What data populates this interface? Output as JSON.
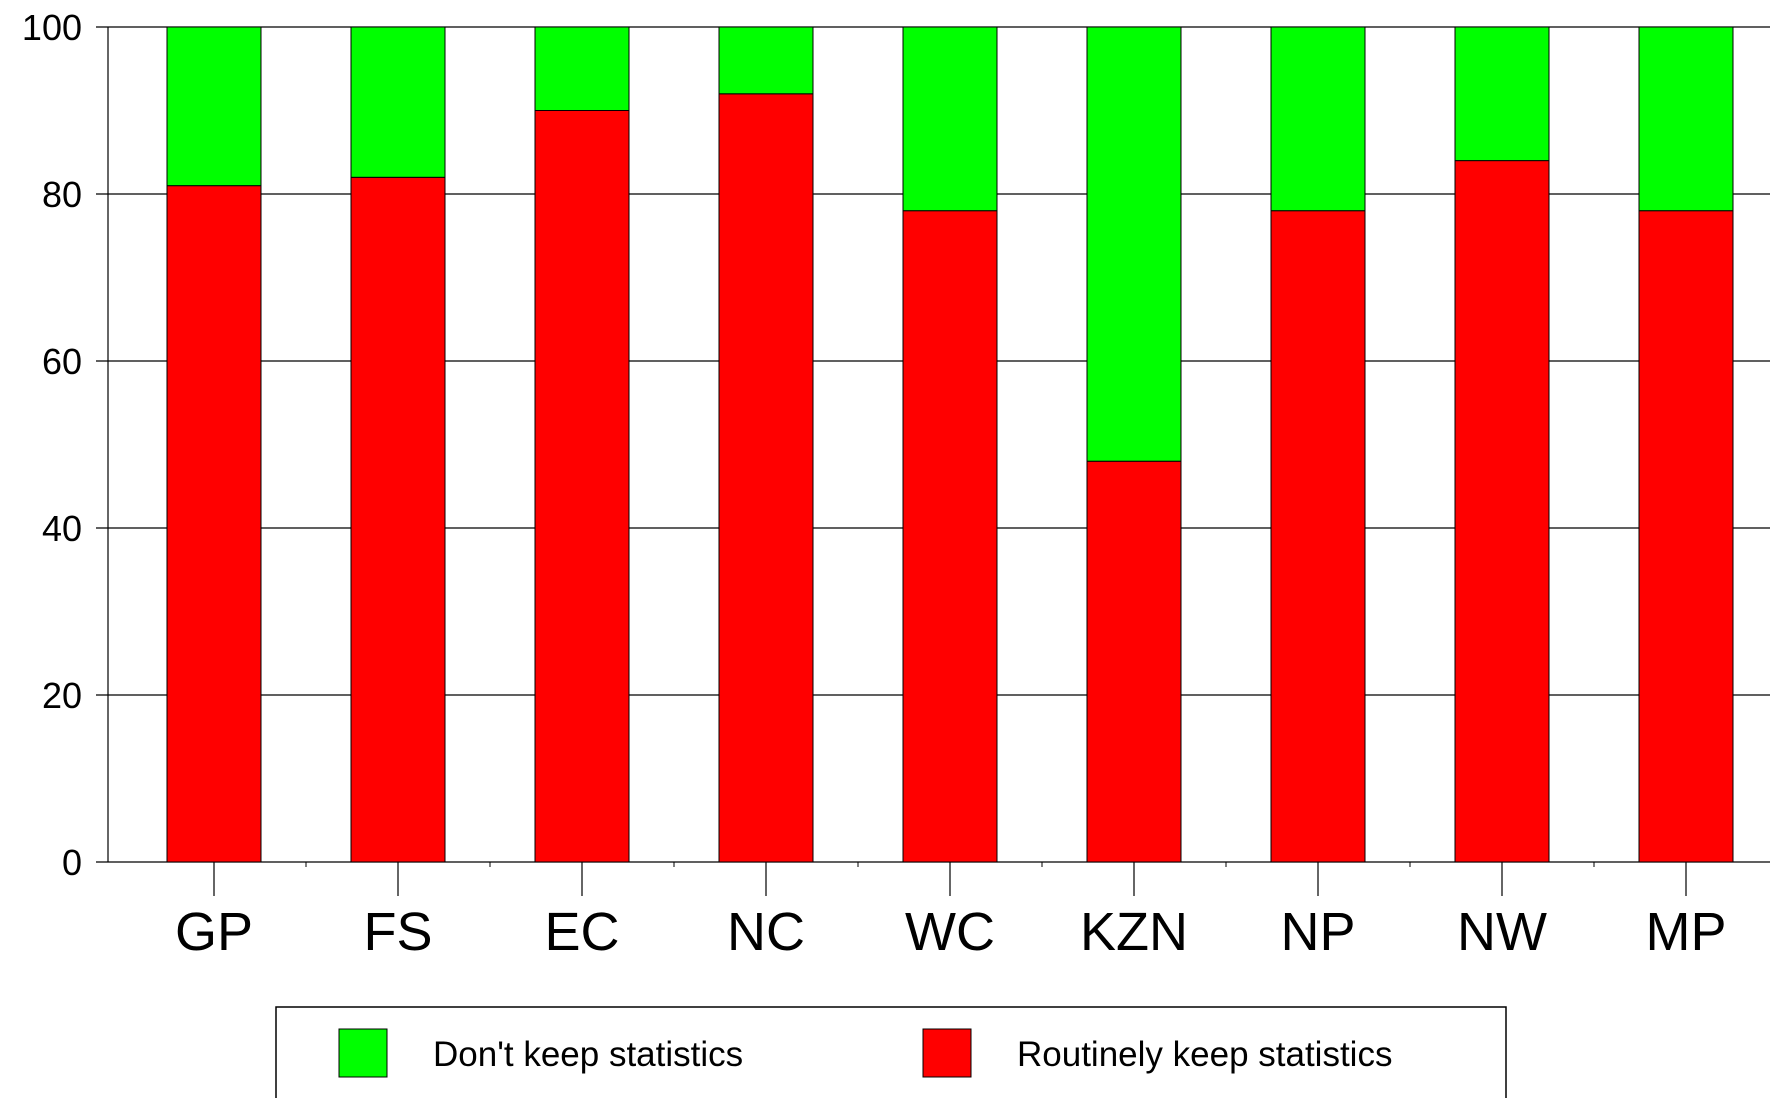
{
  "chart_data": {
    "type": "bar",
    "stacked": true,
    "categories": [
      "GP",
      "FS",
      "EC",
      "NC",
      "WC",
      "KZN",
      "NP",
      "NW",
      "MP"
    ],
    "series": [
      {
        "name": "Routinely keep statistics",
        "color": "#ff0000",
        "values": [
          81,
          82,
          90,
          92,
          78,
          48,
          78,
          84,
          78
        ]
      },
      {
        "name": "Don't keep statistics",
        "color": "#00ff00",
        "values": [
          19,
          18,
          10,
          8,
          22,
          52,
          22,
          16,
          22
        ]
      }
    ],
    "yticks": [
      "0",
      "20",
      "40",
      "60",
      "80",
      "100"
    ],
    "ylim": [
      0,
      100
    ],
    "grid": true,
    "legend": {
      "position": "bottom",
      "items": [
        {
          "label": "Don't keep statistics",
          "color": "#00ff00"
        },
        {
          "label": "Routinely keep statistics",
          "color": "#ff0000"
        }
      ]
    },
    "title": "",
    "xlabel": "",
    "ylabel": ""
  }
}
